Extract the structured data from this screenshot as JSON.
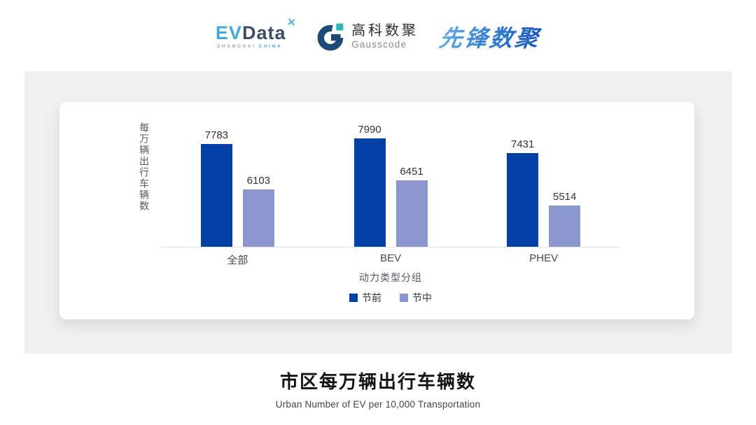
{
  "header": {
    "evdata": {
      "ev": "EV",
      "data": "Data",
      "mark": "✕",
      "sub_left": "SHANGHAI",
      "sub_right": "CHINA"
    },
    "gausscode": {
      "cn": "高科数聚",
      "en": "Gausscode"
    },
    "pioneer": {
      "text": "先锋数聚"
    }
  },
  "chart_data": {
    "type": "bar",
    "categories": [
      "全部",
      "BEV",
      "PHEV"
    ],
    "series": [
      {
        "name": "节前",
        "color": "#0340a5",
        "values": [
          7783,
          7990,
          7431
        ]
      },
      {
        "name": "节中",
        "color": "#8a96ce",
        "values": [
          6103,
          6451,
          5514
        ]
      }
    ],
    "title": "市区每万辆出行车辆数",
    "xlabel": "动力类型分组",
    "ylabel": "每万辆出行车辆数",
    "ylim": [
      4000,
      8800
    ],
    "grid": false,
    "legend_position": "bottom",
    "value_labels": true
  },
  "footer": {
    "title": "市区每万辆出行车辆数",
    "subtitle": "Urban Number of EV per 10,000 Transportation"
  },
  "colors": {
    "series_pre_holiday": "#0340a5",
    "series_during_holiday": "#8a96ce",
    "panel_bg": "#f0f0f1",
    "axis_line": "#e2e2e4",
    "evdata_blue": "#3fa9dc",
    "evdata_dark": "#3d4e63",
    "gauss_navy": "#1d4a78",
    "gauss_teal": "#2fb3b5",
    "pioneer_blue": "#2e7fd6"
  }
}
